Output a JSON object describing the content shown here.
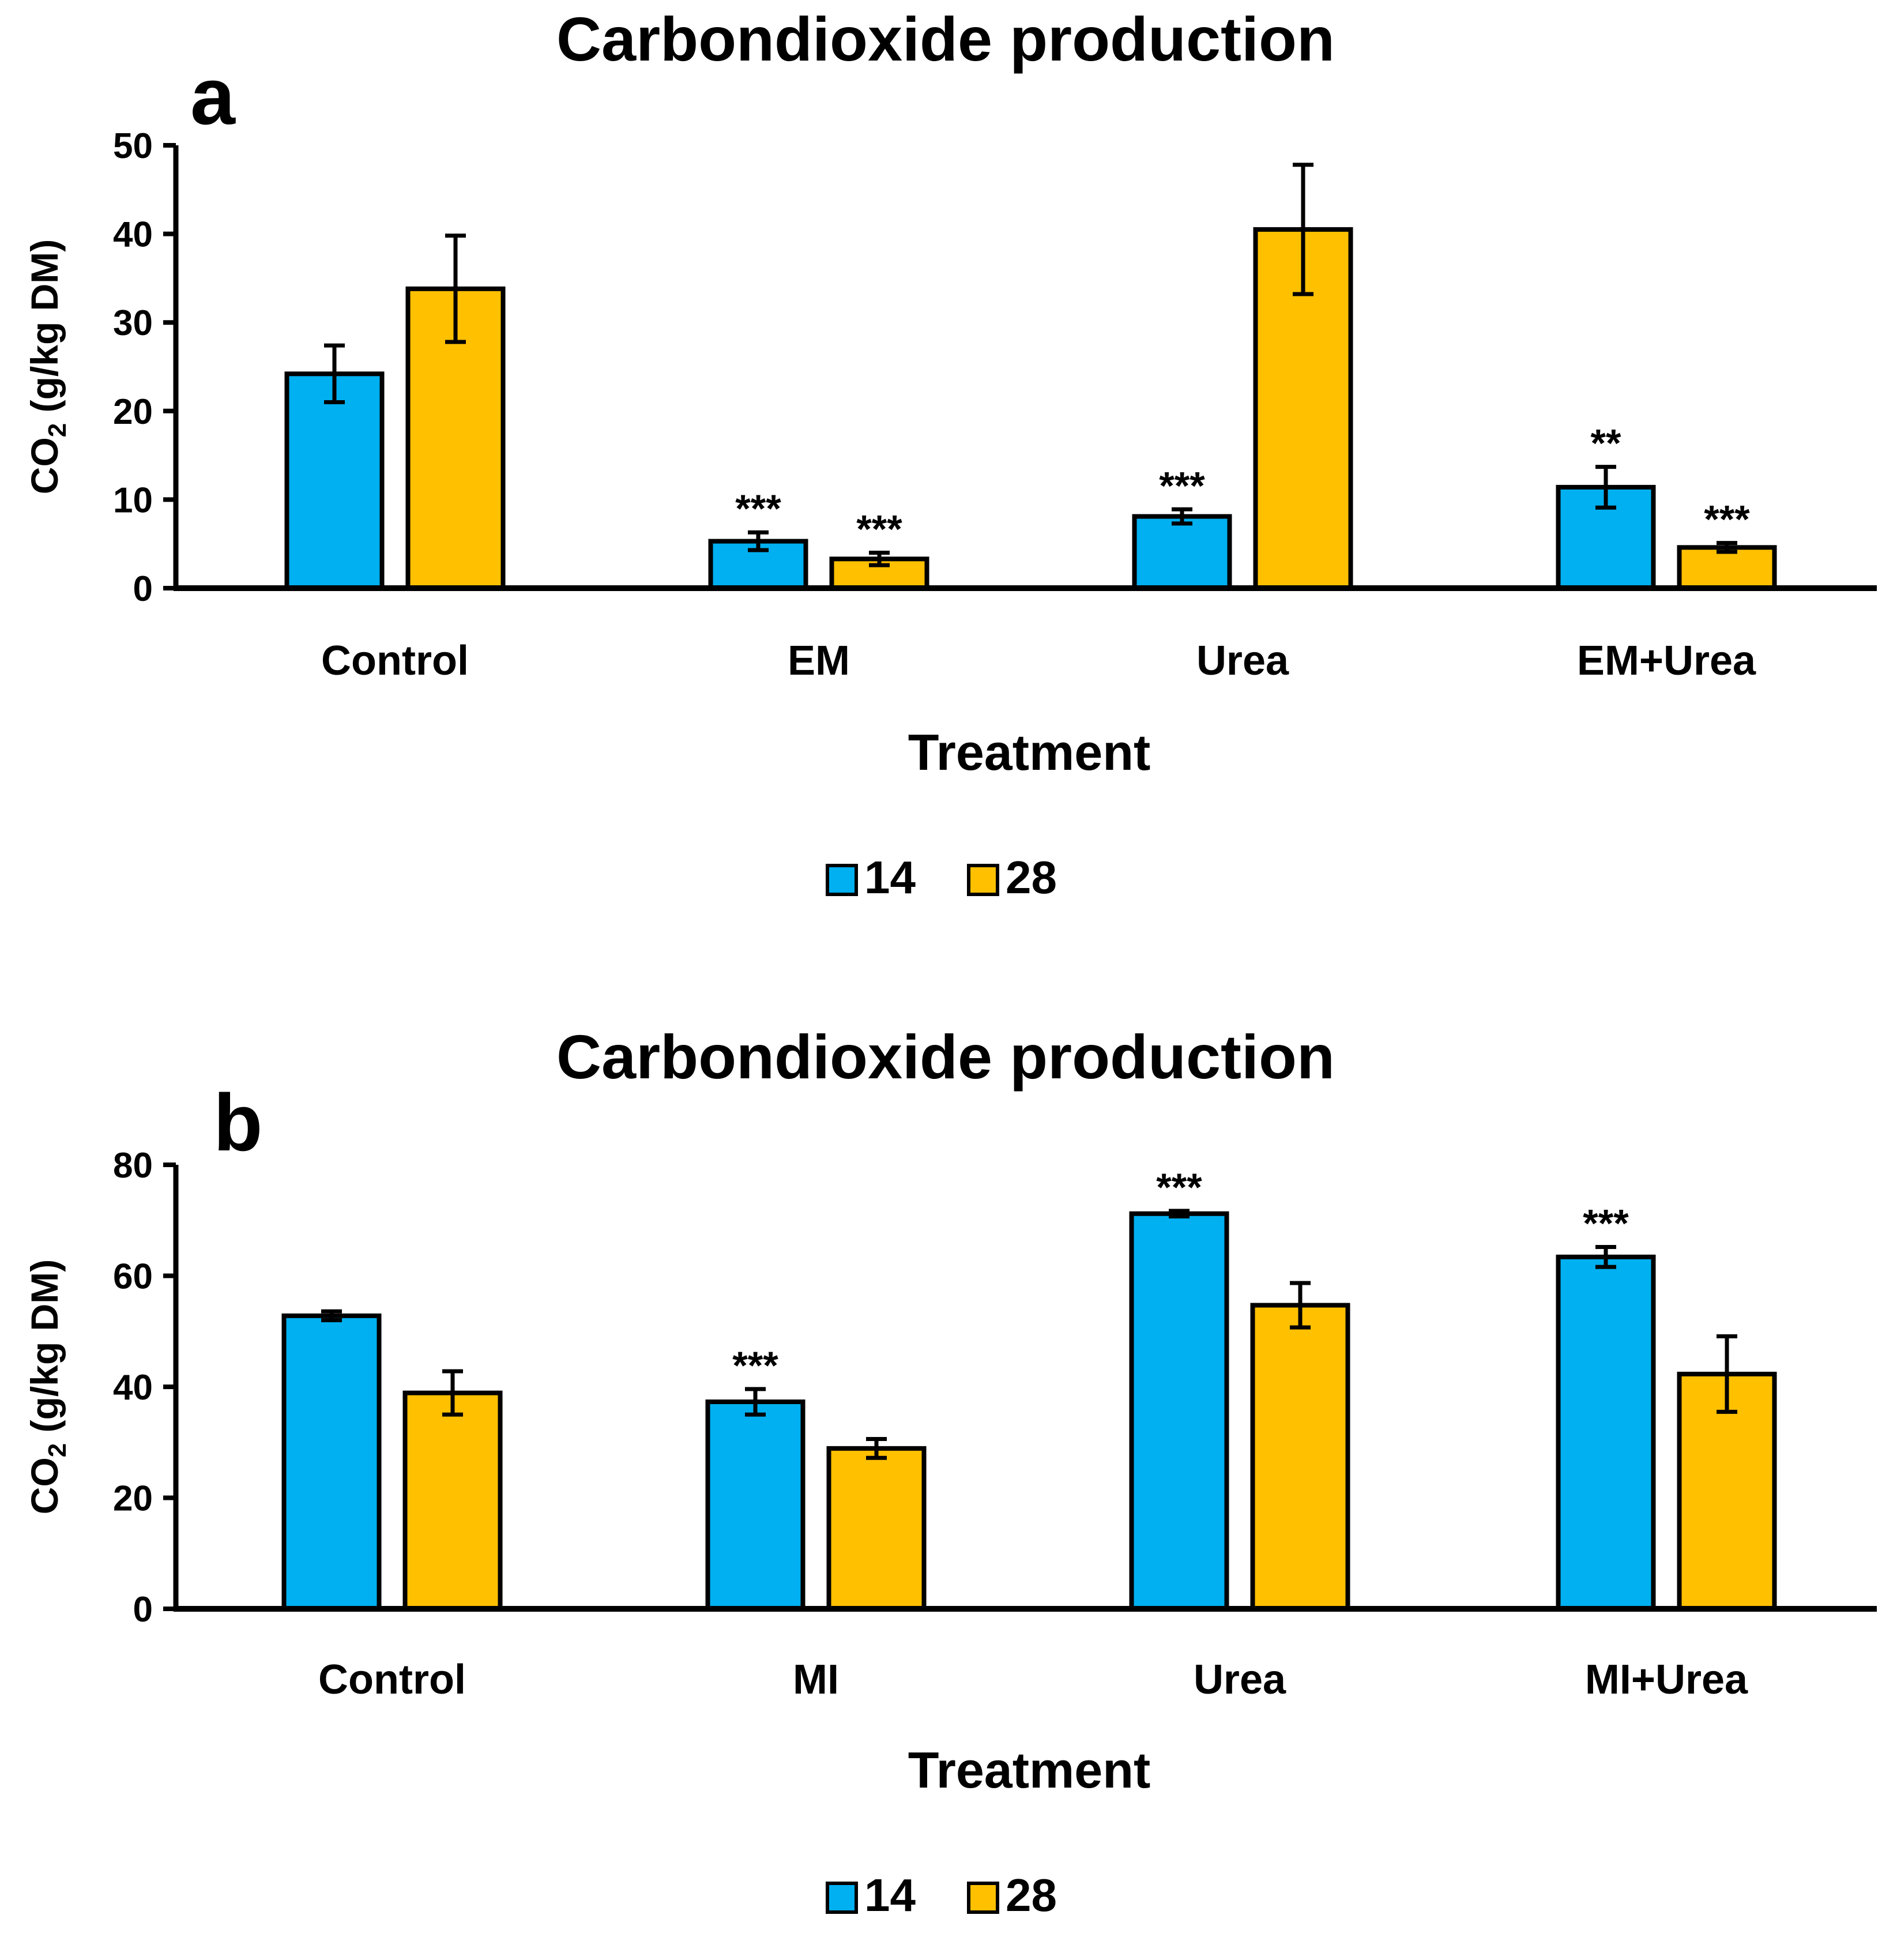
{
  "colors": {
    "series_14": "#00B0F0",
    "series_28": "#FFC000",
    "axis": "#000000"
  },
  "chart_data": [
    {
      "type": "bar",
      "panel_label": "a",
      "title": "Carbondioxide production",
      "xlabel": "Treatment",
      "ylabel_main": "CO",
      "ylabel_sub": "2",
      "ylabel_rest": " (g/kg DM)",
      "ylim": [
        0,
        50
      ],
      "yticks": [
        0,
        10,
        20,
        30,
        40,
        50
      ],
      "categories": [
        "Control",
        "EM",
        "Urea",
        "EM+Urea"
      ],
      "series": [
        {
          "name": "14",
          "values": [
            24.2,
            5.3,
            8.1,
            11.4
          ],
          "errors": [
            3.2,
            1.0,
            0.8,
            2.3
          ],
          "significance": [
            "",
            "***",
            "***",
            "**"
          ]
        },
        {
          "name": "28",
          "values": [
            33.8,
            3.3,
            40.5,
            4.6
          ],
          "errors": [
            6.0,
            0.7,
            7.3,
            0.5
          ],
          "significance": [
            "",
            "***",
            "",
            "***"
          ]
        }
      ],
      "legend": [
        "14",
        "28"
      ]
    },
    {
      "type": "bar",
      "panel_label": "b",
      "title": "Carbondioxide production",
      "xlabel": "Treatment",
      "ylabel_main": "CO",
      "ylabel_sub": "2",
      "ylabel_rest": " (g/kg DM)",
      "ylim": [
        0,
        80
      ],
      "yticks": [
        0,
        20,
        40,
        60,
        80
      ],
      "categories": [
        "Control",
        "MI",
        "Urea",
        "MI+Urea"
      ],
      "series": [
        {
          "name": "14",
          "values": [
            52.8,
            37.3,
            71.2,
            63.4
          ],
          "errors": [
            0.8,
            2.3,
            0.5,
            1.8
          ],
          "significance": [
            "",
            "***",
            "***",
            "***"
          ]
        },
        {
          "name": "28",
          "values": [
            38.9,
            28.9,
            54.7,
            42.3
          ],
          "errors": [
            3.9,
            1.7,
            4.0,
            6.8
          ],
          "significance": [
            "",
            "",
            "",
            ""
          ]
        }
      ],
      "legend": [
        "14",
        "28"
      ]
    }
  ]
}
